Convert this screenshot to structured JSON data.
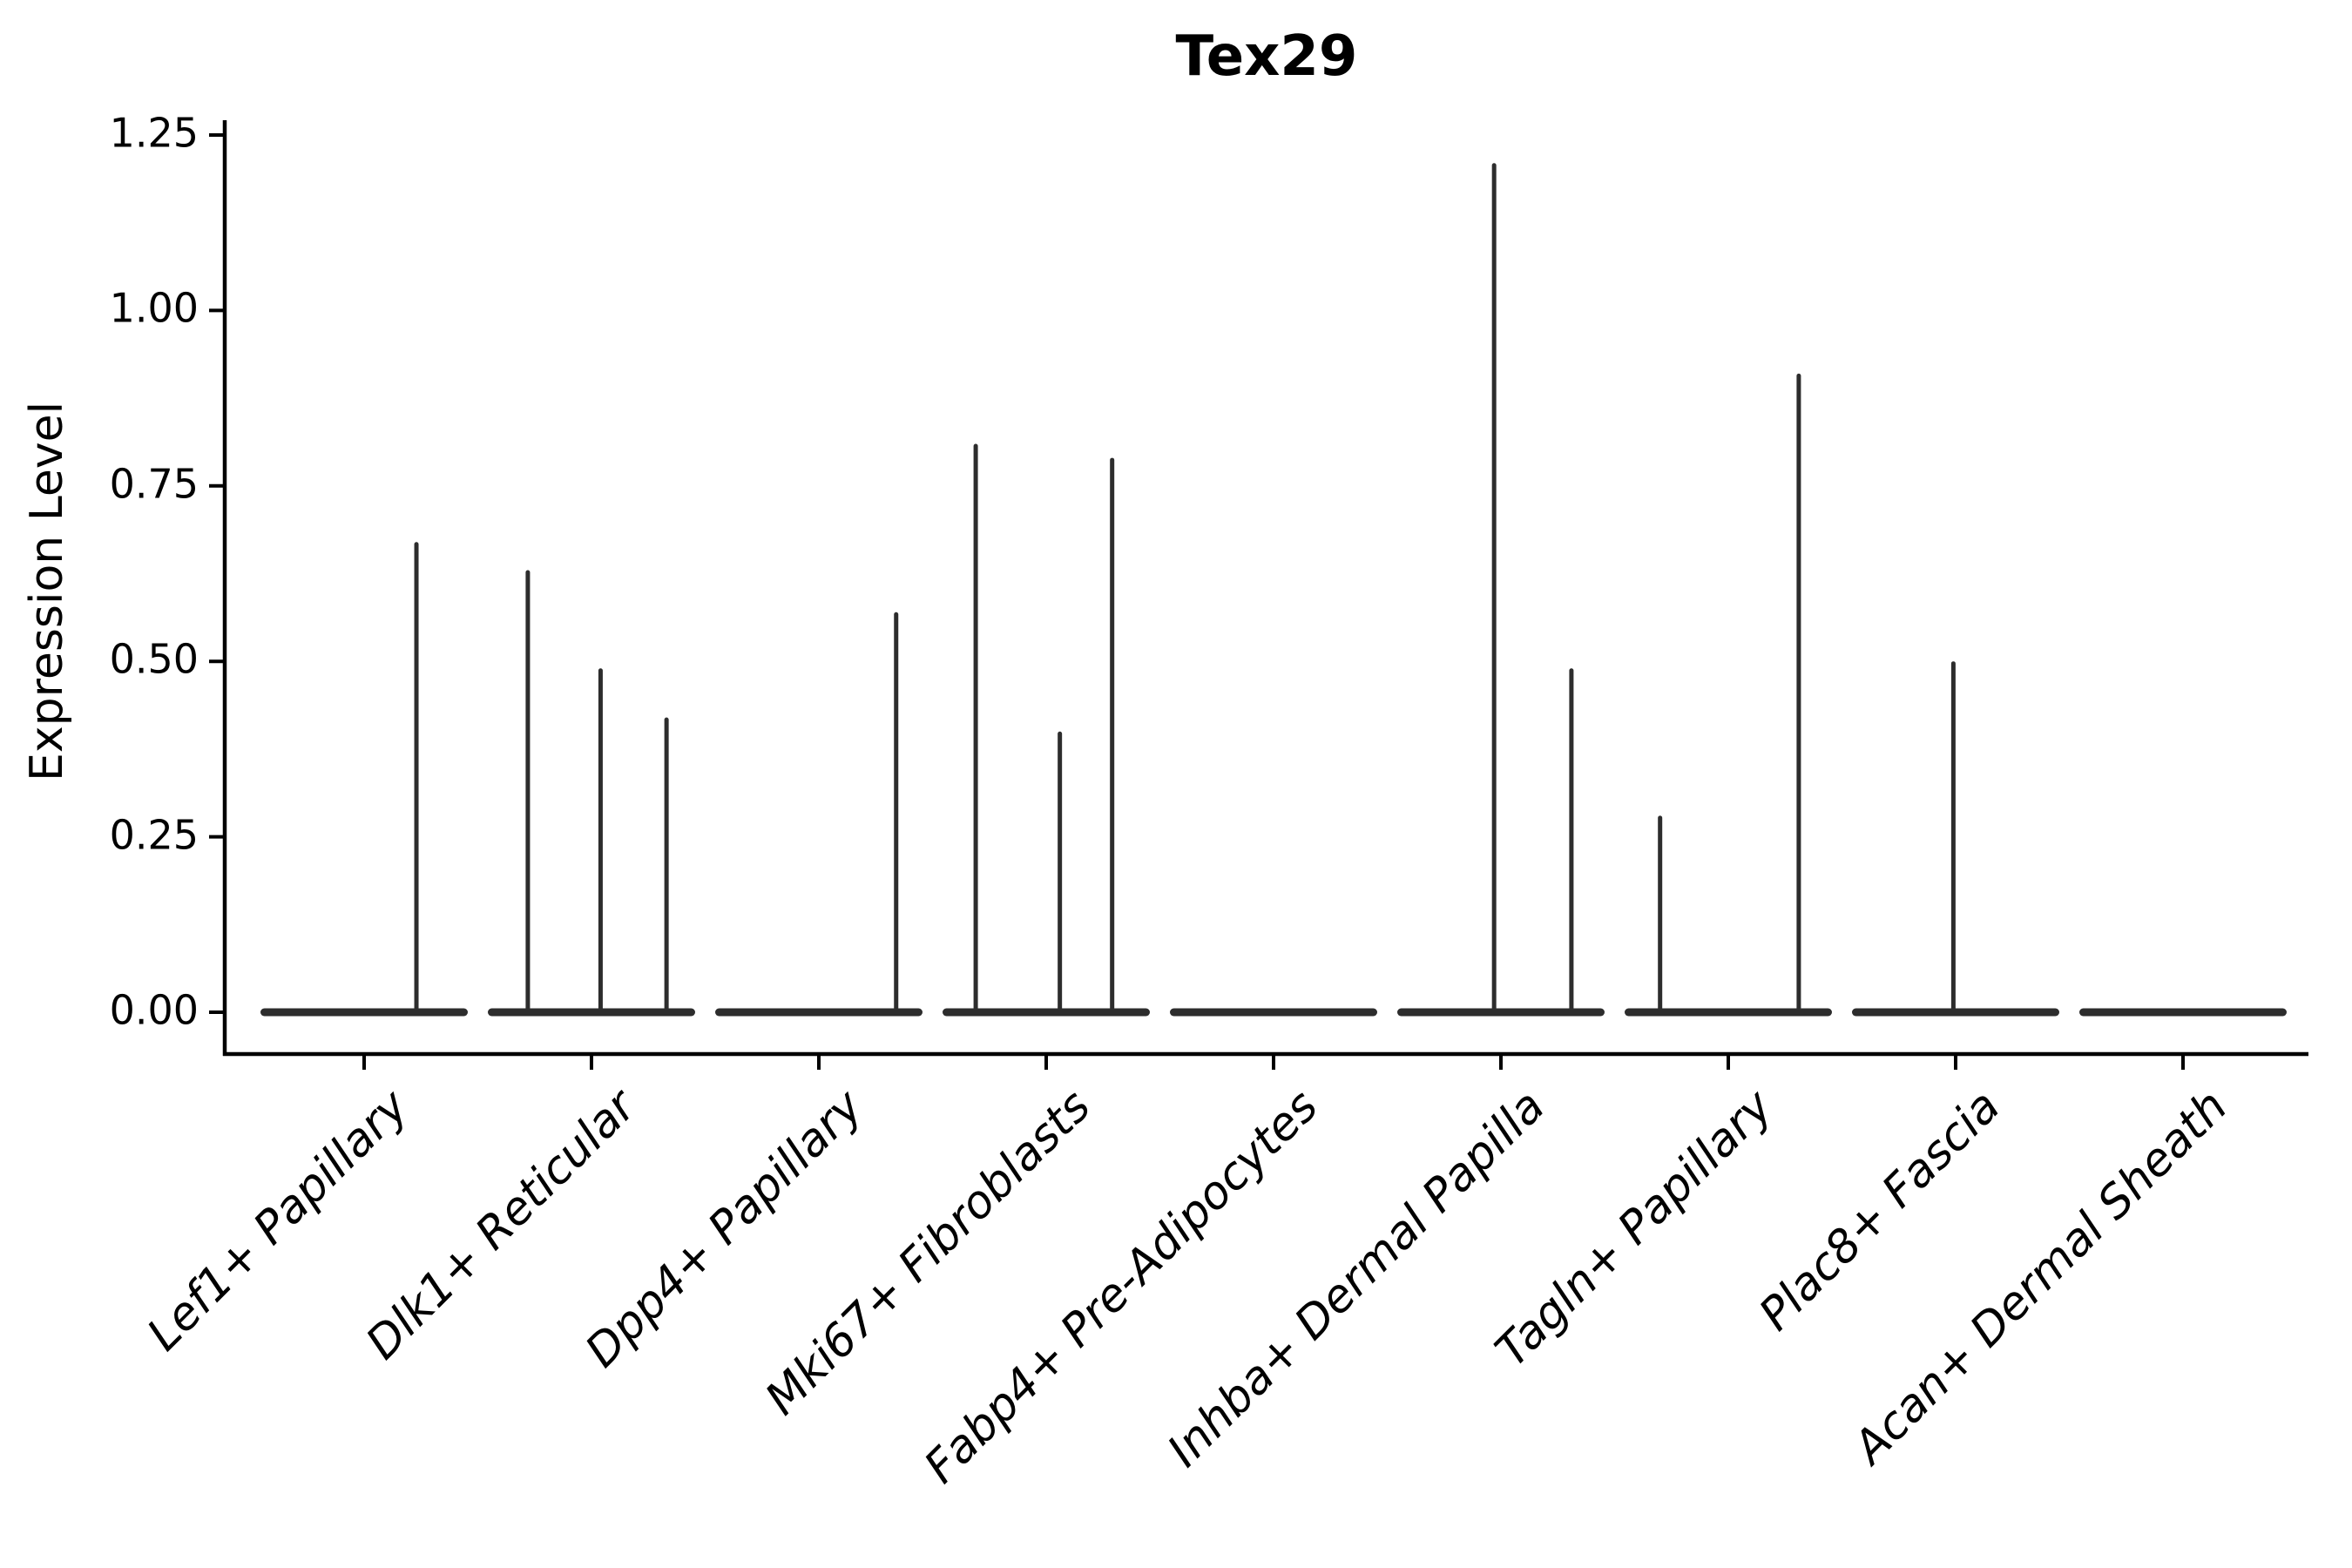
{
  "chart_data": {
    "type": "violin",
    "title": "Tex29",
    "xlabel": "",
    "ylabel": "Expression Level",
    "ylim": [
      -0.06,
      1.27
    ],
    "grid": false,
    "legend": "none",
    "y_ticks": [
      {
        "value": 0.0,
        "label": "0.00"
      },
      {
        "value": 0.25,
        "label": "0.25"
      },
      {
        "value": 0.5,
        "label": "0.50"
      },
      {
        "value": 0.75,
        "label": "0.75"
      },
      {
        "value": 1.0,
        "label": "1.00"
      },
      {
        "value": 1.25,
        "label": "1.25"
      }
    ],
    "categories": [
      "Lef1+ Papillary",
      "Dlk1+ Reticular",
      "Dpp4+ Papillary",
      "Mki67+ Fibroblasts",
      "Fabp4+ Pre-Adipocytes",
      "Inhba+ Dermal Papilla",
      "Tagln+ Papillary",
      "Plac8+ Fascia",
      "Acan+ Dermal Sheath"
    ],
    "series": [
      {
        "name": "Lef1+ Papillary",
        "baseline_value": 0,
        "spikes": [
          {
            "offset": 0.23,
            "value": 0.67
          }
        ]
      },
      {
        "name": "Dlk1+ Reticular",
        "baseline_value": 0,
        "spikes": [
          {
            "offset": -0.28,
            "value": 0.63
          },
          {
            "offset": 0.04,
            "value": 0.49
          },
          {
            "offset": 0.33,
            "value": 0.42
          }
        ]
      },
      {
        "name": "Dpp4+ Papillary",
        "baseline_value": 0,
        "spikes": [
          {
            "offset": 0.34,
            "value": 0.57
          }
        ]
      },
      {
        "name": "Mki67+ Fibroblasts",
        "baseline_value": 0,
        "spikes": [
          {
            "offset": -0.31,
            "value": 0.81
          },
          {
            "offset": 0.06,
            "value": 0.4
          },
          {
            "offset": 0.29,
            "value": 0.79
          }
        ]
      },
      {
        "name": "Fabp4+ Pre-Adipocytes",
        "baseline_value": 0,
        "spikes": []
      },
      {
        "name": "Inhba+ Dermal Papilla",
        "baseline_value": 0,
        "spikes": [
          {
            "offset": -0.03,
            "value": 1.21
          },
          {
            "offset": 0.31,
            "value": 0.49
          }
        ]
      },
      {
        "name": "Tagln+ Papillary",
        "baseline_value": 0,
        "spikes": [
          {
            "offset": -0.3,
            "value": 0.28
          },
          {
            "offset": 0.31,
            "value": 0.91
          }
        ]
      },
      {
        "name": "Plac8+ Fascia",
        "baseline_value": 0,
        "spikes": [
          {
            "offset": -0.01,
            "value": 0.5
          }
        ]
      },
      {
        "name": "Acan+ Dermal Sheath",
        "baseline_value": 0,
        "spikes": []
      }
    ],
    "colors": {
      "violin": "#2d2d2d",
      "axis": "#000000",
      "text": "#000000",
      "background": "#ffffff"
    }
  }
}
